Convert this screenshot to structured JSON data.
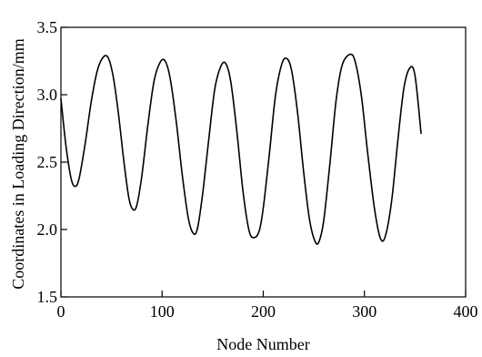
{
  "chart_data": {
    "type": "line",
    "title": "",
    "xlabel": "Node Number",
    "ylabel": "Coordinates in Loading Direction/mm",
    "xlim": [
      0,
      400
    ],
    "ylim": [
      1.5,
      3.5
    ],
    "x_ticks": [
      0,
      100,
      200,
      300,
      400
    ],
    "y_ticks": [
      1.5,
      2.0,
      2.5,
      3.0,
      3.5
    ],
    "x_tick_labels": [
      "0",
      "100",
      "200",
      "300",
      "400"
    ],
    "y_tick_labels": [
      "1.5",
      "2.0",
      "2.5",
      "3.0",
      "3.5"
    ],
    "grid": false,
    "legend": "none",
    "line_color": "#000000",
    "series": [
      {
        "x": [
          0,
          5,
          10,
          14,
          18,
          24,
          30,
          36,
          42,
          47,
          52,
          57,
          62,
          67,
          71,
          75,
          80,
          86,
          92,
          98,
          103,
          108,
          114,
          120,
          126,
          131,
          135,
          140,
          146,
          152,
          158,
          163,
          168,
          174,
          180,
          186,
          191,
          196,
          200,
          206,
          212,
          218,
          223,
          228,
          234,
          240,
          246,
          252,
          256,
          260,
          266,
          272,
          278,
          286,
          291,
          297,
          303,
          310,
          316,
          321,
          327,
          333,
          339,
          345,
          350,
          356
        ],
        "y": [
          2.97,
          2.62,
          2.38,
          2.32,
          2.38,
          2.64,
          2.95,
          3.18,
          3.28,
          3.27,
          3.12,
          2.85,
          2.52,
          2.24,
          2.15,
          2.18,
          2.4,
          2.78,
          3.1,
          3.24,
          3.25,
          3.12,
          2.8,
          2.4,
          2.08,
          1.97,
          2.01,
          2.26,
          2.66,
          3.04,
          3.21,
          3.23,
          3.09,
          2.72,
          2.28,
          1.99,
          1.94,
          1.99,
          2.16,
          2.56,
          2.99,
          3.22,
          3.27,
          3.18,
          2.86,
          2.42,
          2.06,
          1.9,
          1.93,
          2.08,
          2.5,
          2.96,
          3.22,
          3.3,
          3.24,
          2.99,
          2.58,
          2.15,
          1.93,
          1.96,
          2.22,
          2.66,
          3.05,
          3.2,
          3.14,
          2.71
        ]
      }
    ]
  }
}
